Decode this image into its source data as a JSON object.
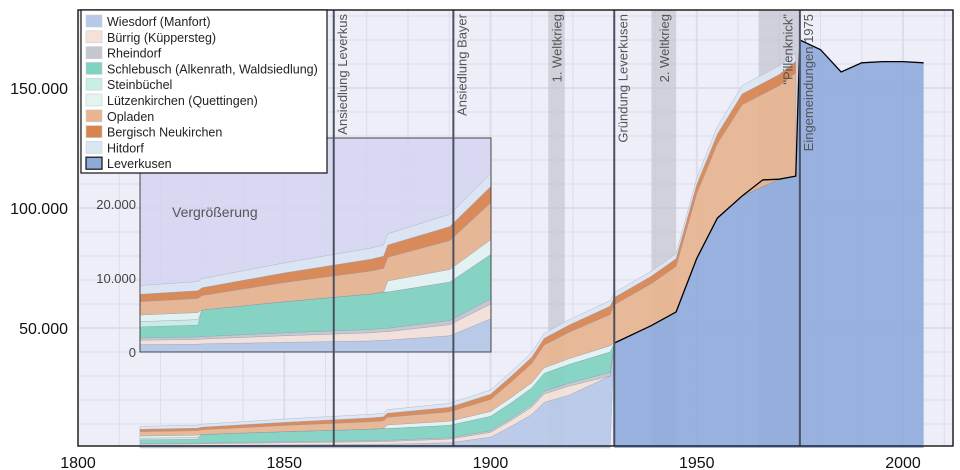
{
  "chart_data": {
    "type": "area",
    "title": "",
    "xlabel": "",
    "ylabel": "",
    "xlim": [
      1800,
      2012
    ],
    "ylim": [
      0,
      182500
    ],
    "grid": true,
    "legend_position": "top-left",
    "x_ticks": [
      1800,
      1850,
      1900,
      1950,
      2000
    ],
    "x_tick_labels": [
      "1800",
      "1850",
      "1900",
      "1950",
      "2000"
    ],
    "y_ticks": [
      50000,
      100000,
      150000
    ],
    "y_tick_labels": [
      "50.000",
      "100.000",
      "150.000"
    ],
    "stack_years": [
      1815,
      1829,
      1830,
      1850,
      1871,
      1874,
      1875,
      1890,
      1900,
      1905,
      1910,
      1913,
      1919,
      1929,
      1930,
      1939,
      1945,
      1950,
      1955,
      1961,
      1970,
      1974
    ],
    "series": [
      {
        "name": "Wiesdorf (Manfort)",
        "color": "#b7c9e8",
        "values": [
          1000,
          1050,
          1100,
          1300,
          1500,
          1600,
          1600,
          2200,
          4500,
          9000,
          14000,
          19000,
          22000,
          30000,
          0,
          0,
          0,
          0,
          0,
          0,
          0,
          0
        ]
      },
      {
        "name": "Bürrig (Küppersteg)",
        "color": "#f4e2d8",
        "values": [
          600,
          650,
          650,
          900,
          1100,
          1150,
          1150,
          1500,
          2000,
          2500,
          3000,
          3500,
          3800,
          0,
          0,
          0,
          0,
          0,
          0,
          0,
          0,
          0
        ]
      },
      {
        "name": "Rheindorf",
        "color": "#c3c7cf",
        "values": [
          300,
          330,
          330,
          400,
          450,
          460,
          460,
          550,
          700,
          800,
          1000,
          1100,
          1200,
          1500,
          0,
          0,
          0,
          0,
          0,
          0,
          0,
          0
        ]
      },
      {
        "name": "Schlebusch (Alkenrath, Waldsiedlung)",
        "color": "#80d3c1",
        "values": [
          1500,
          1600,
          3600,
          4200,
          4800,
          4900,
          4900,
          5200,
          6000,
          6500,
          7000,
          7500,
          7800,
          8500,
          0,
          0,
          0,
          0,
          0,
          0,
          0,
          0
        ]
      },
      {
        "name": "Steinbüchel",
        "color": "#c9eee5",
        "values": [
          700,
          750,
          0,
          0,
          0,
          0,
          0,
          0,
          0,
          0,
          0,
          0,
          0,
          0,
          0,
          0,
          0,
          0,
          0,
          0,
          0,
          0
        ]
      },
      {
        "name": "Lützenkirchen (Quettingen)",
        "color": "#e3f4f1",
        "values": [
          900,
          950,
          0,
          0,
          0,
          0,
          1500,
          1700,
          2000,
          2200,
          2200,
          2300,
          2400,
          2600,
          0,
          0,
          0,
          0,
          0,
          0,
          0,
          0
        ]
      },
      {
        "name": "Opladen",
        "color": "#e8b590",
        "values": [
          1800,
          1900,
          1950,
          2600,
          3100,
          3200,
          3200,
          3900,
          5000,
          6500,
          8000,
          9500,
          11000,
          13000,
          16000,
          17500,
          19000,
          27000,
          31000,
          38000,
          39000,
          43000
        ]
      },
      {
        "name": "Bergisch Neukirchen",
        "color": "#d9844f",
        "values": [
          1000,
          1050,
          1050,
          1300,
          1600,
          1650,
          1650,
          1900,
          2200,
          2400,
          2600,
          2800,
          3000,
          3500,
          3000,
          3100,
          3200,
          3800,
          4000,
          4500,
          4600,
          4800
        ]
      },
      {
        "name": "Hitdorf",
        "color": "#dce6f2",
        "values": [
          1200,
          1230,
          1230,
          1350,
          1500,
          1520,
          1520,
          1650,
          1800,
          1900,
          2000,
          2100,
          2200,
          2300,
          2000,
          2100,
          2100,
          2700,
          3200,
          3500,
          3700,
          3400
        ]
      }
    ],
    "leverkusen": {
      "name": "Leverkusen",
      "color": "#8eaadb",
      "years": [
        1930,
        1939,
        1945,
        1950,
        1955,
        1961,
        1966,
        1970,
        1974,
        1975,
        1980,
        1985,
        1990,
        1995,
        2000,
        2005
      ],
      "values": [
        43700,
        51000,
        56700,
        79000,
        95800,
        105000,
        111700,
        112000,
        113300,
        170000,
        166000,
        156700,
        160500,
        161000,
        161000,
        160500
      ]
    },
    "events": [
      {
        "label": "Ansiedlung Leverkus",
        "year": 1862
      },
      {
        "label": "Ansiedlung Bayer",
        "year": 1891
      },
      {
        "label": "Gründung Leverkusen",
        "year": 1930
      },
      {
        "label": "Eingemeindungen 1975",
        "year": 1975
      }
    ],
    "periods": [
      {
        "label": "1. Weltkrieg",
        "from": 1914,
        "to": 1918
      },
      {
        "label": "2. Weltkrieg",
        "from": 1939,
        "to": 1945
      },
      {
        "label": "\"Pillenknick\"",
        "from": 1965,
        "to": 1975
      }
    ],
    "inset": {
      "label": "Vergrößerung",
      "xlim": [
        1815,
        1900
      ],
      "ylim": [
        0,
        29000
      ],
      "y_ticks": [
        0,
        10000,
        20000
      ],
      "y_tick_labels": [
        "0",
        "10.000",
        "20.000"
      ]
    }
  }
}
